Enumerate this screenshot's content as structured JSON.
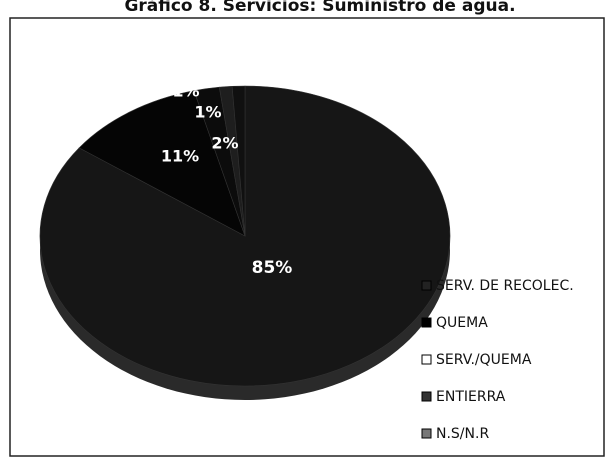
{
  "chart_data": {
    "type": "pie",
    "title": "Gráfico 8. Servicios: Suministro de agua.",
    "categories": [
      "SERV. DE RECOLEC.",
      "QUEMA",
      "SERV./QUEMA",
      "ENTIERRA",
      "N.S/N.R"
    ],
    "values": [
      85,
      11,
      2,
      1,
      1
    ],
    "value_labels": [
      "85%",
      "11%",
      "2%",
      "1%",
      "1%"
    ],
    "colors": [
      "#161616",
      "#050505",
      "#0c0c0c",
      "#1e1e1e",
      "#101010"
    ],
    "legend_colors": [
      "#222222",
      "#000000",
      "#ffffff",
      "#333333",
      "#777777"
    ],
    "legend": "right"
  }
}
